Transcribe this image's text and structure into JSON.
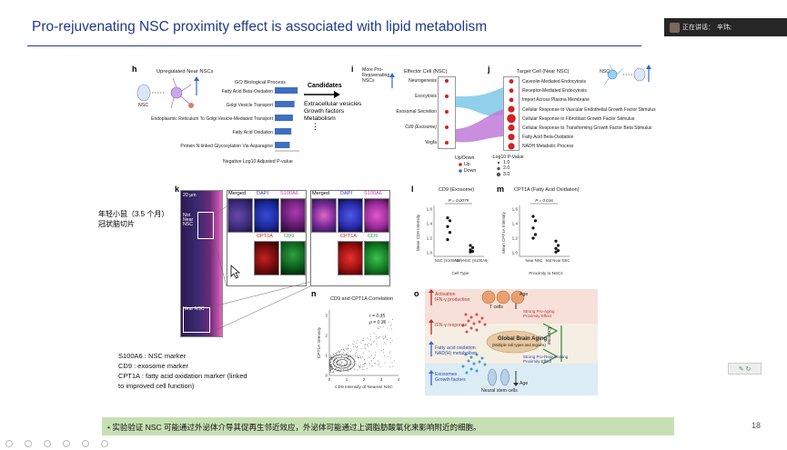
{
  "slide": {
    "title": "Pro-rejuvenating NSC proximity effect is associated with lipid metabolism",
    "page_number": "18",
    "bullet": "•  实验验证 NSC 可能通过外泌体介导其促再生邻近效应，外泌体可能通过上调脂肪酸氧化来影响附近的细胞。"
  },
  "meeting": {
    "speaking_label": "正在讲话：",
    "speaker_name": "辛玮;"
  },
  "notes": {
    "sample_line1": "年轻小鼠（3.5 个月）",
    "sample_line2": "冠状脑切片",
    "markers": [
      "S100A6 : NSC marker",
      "CD9 : exosome marker",
      "CPT1A : fatty acid oxidation marker (linked",
      "to improved cell function)"
    ]
  },
  "panel_h": {
    "letter": "h",
    "heading": "Upregulated Near NSCs",
    "nsc_label": "NSC",
    "go_title": "GO Biological Process",
    "terms": [
      "Fatty Acid Beta-Oxidation",
      "Golgi Vesicle Transport",
      "Endoplasmic Reticulum To Golgi Vesicle-Mediated Transport",
      "Fatty Acid Oxidation",
      "Protein N-linked Glycosylation Via Asparagine"
    ],
    "bar_values": [
      5.8,
      5.0,
      4.6,
      4.2,
      3.8
    ],
    "axis_ticks": [
      "0",
      "2",
      "4",
      "6"
    ],
    "xlabel": "Negative Log10 Adjusted P-value",
    "candidates_heading": "Candidates",
    "candidates": [
      "Extracellular vesicles",
      "Growth factors",
      "Metabolism"
    ]
  },
  "panel_i": {
    "letter": "i",
    "heading": "More Pro-Rejuvenating NSCs",
    "column_title": "Effector Cell (NSC)",
    "items": [
      "Neurogenesis",
      "Exocytosis",
      "Exosomal Secretion",
      "Cd9 (Exosome)",
      "Vegfa"
    ],
    "legend_updown_title": "Up/Down",
    "legend_up": "Up",
    "legend_down": "Down"
  },
  "panel_j": {
    "letter": "j",
    "column_title": "Target Cell (Near NSC)",
    "nsc_label": "NSC",
    "items": [
      "Caveolin-Mediated Endocytosis",
      "Receptor-Mediated Endocytosis",
      "Import Across Plasma Membrane",
      "Cellular Response to Vascular Endothelial Growth Factor Stimulus",
      "Cellular Response to Fibroblast Growth Factor Stimulus",
      "Cellular Response to Transforming Growth Factor Beta Stimulus",
      "Fatty Acid Beta-Oxidation",
      "NADH Metabolic Process"
    ],
    "dot_sizes": [
      1.0,
      1.0,
      1.0,
      2.0,
      3.0,
      2.0,
      2.0,
      2.0
    ],
    "pvalue_title": "-Log10 P-Value",
    "pvalue_levels": [
      "1.0",
      "2.0",
      "3.0"
    ]
  },
  "panel_k": {
    "letter": "k",
    "scale_main": "20 μm",
    "not_near_label": "Not Near NSC",
    "near_label": "Near NSC",
    "merged": "Merged",
    "dapi": "DAPI",
    "s100a6": "S100A6",
    "cpt1a": "CPT1A",
    "cd9": "CD9",
    "scale_small": "10 μm",
    "colors": {
      "merged": "#000000",
      "dapi": "#2f3fbf",
      "s100a6": "#c83aa8",
      "cpt1a": "#d42020",
      "cd9": "#22a040"
    }
  },
  "panel_l": {
    "letter": "l",
    "title": "CD9 (Exosome)",
    "p_text": "P = 0.0079",
    "ylabel": "Mean CD9 Intensity",
    "yticks": [
      "1.6",
      "1.4",
      "1.2",
      "1.0"
    ],
    "xticks": [
      "NSC (S100A6+)",
      "Non-NSC (S100A6-)"
    ],
    "xlabel": "Cell Type"
  },
  "panel_m": {
    "letter": "m",
    "title": "CPT1A (Fatty Acid Oxidation)",
    "p_text": "P = 0.016",
    "ylabel": "Mean CPT1A Intensity",
    "yticks": [
      "1.6",
      "1.4",
      "1.2",
      "1.0"
    ],
    "xticks": [
      "Near NSC",
      "Not Near NSC"
    ],
    "xlabel": "Proximity to NSCs"
  },
  "panel_n": {
    "letter": "n",
    "title": "CD9 and CPT1A Correlation",
    "r_text": "r = 0.35",
    "rho_text": "ρ = 0.36",
    "ylabel": "CPT1A Intensity",
    "xlabel": "CD9 Intensity of Nearest NSC",
    "xticks": [
      "0",
      "1",
      "2",
      "3",
      "4"
    ],
    "yticks": [
      "0",
      "1",
      "2",
      "3"
    ]
  },
  "panel_o": {
    "letter": "o",
    "activation": "Activation",
    "ifn_production": "IFN-γ production",
    "t_cells": "T cells",
    "strong_pro_aging": "Strong Pro-Aging Proximity Effect",
    "ifn_response": "IFN-γ response",
    "global_aging": "Global Brain Aging",
    "global_aging_sub": "(Multiple cell types and regions)",
    "fatty_acid": "Fatty acid oxidation",
    "nadh": "NAD(H) metabolism",
    "strong_pro_rejuv": "Strong Pro-Rejuvenating Proximity Effect",
    "exosomes": "Exosomes",
    "growth_factors": "Growth factors",
    "nsc": "Neural stem cells",
    "age": "Age",
    "exercise": "Exercise"
  }
}
